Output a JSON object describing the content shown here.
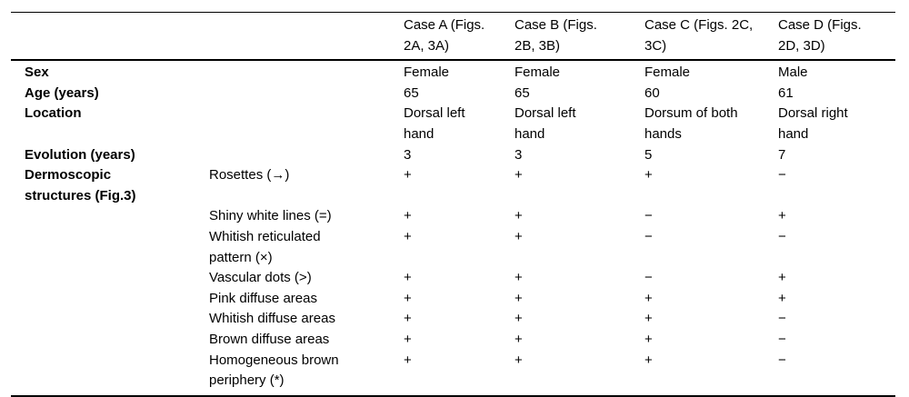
{
  "colors": {
    "background": "#ffffff",
    "text": "#000000",
    "rule": "#000000"
  },
  "table": {
    "header_cols": [
      "",
      "",
      "Case A (Figs.\n2A, 3A)",
      "Case B (Figs.\n2B, 3B)",
      "Case C (Figs. 2C,\n3C)",
      "Case D (Figs.\n2D, 3D)"
    ],
    "rows": [
      {
        "label": "Sex",
        "sub": "",
        "values": [
          "Female",
          "Female",
          "Female",
          "Male"
        ]
      },
      {
        "label": "Age (years)",
        "sub": "",
        "values": [
          "65",
          "65",
          "60",
          "61"
        ]
      },
      {
        "label": "Location",
        "sub": "",
        "values": [
          "Dorsal left\nhand",
          "Dorsal left\nhand",
          "Dorsum of both\nhands",
          "Dorsal right\nhand"
        ]
      },
      {
        "label": "Evolution (years)",
        "sub": "",
        "values": [
          "3",
          "3",
          "5",
          "7"
        ]
      },
      {
        "label": "Dermoscopic\nstructures (Fig.3)",
        "sub": "Rosettes (→)",
        "values": [
          "+",
          "+",
          "+",
          "−"
        ]
      },
      {
        "label": "",
        "sub": "Shiny white lines (=)",
        "values": [
          "+",
          "+",
          "−",
          "+"
        ]
      },
      {
        "label": "",
        "sub": "Whitish reticulated\npattern (×)",
        "values": [
          "+",
          "+",
          "−",
          "−"
        ]
      },
      {
        "label": "",
        "sub": "Vascular dots (>)",
        "values": [
          "+",
          "+",
          "−",
          "+"
        ]
      },
      {
        "label": "",
        "sub": "Pink diffuse areas",
        "values": [
          "+",
          "+",
          "+",
          "+"
        ]
      },
      {
        "label": "",
        "sub": "Whitish diffuse areas",
        "values": [
          "+",
          "+",
          "+",
          "−"
        ]
      },
      {
        "label": "",
        "sub": "Brown diffuse areas",
        "values": [
          "+",
          "+",
          "+",
          "−"
        ]
      },
      {
        "label": "",
        "sub": "Homogeneous brown\nperiphery (*)",
        "values": [
          "+",
          "+",
          "+",
          "−"
        ]
      }
    ]
  }
}
